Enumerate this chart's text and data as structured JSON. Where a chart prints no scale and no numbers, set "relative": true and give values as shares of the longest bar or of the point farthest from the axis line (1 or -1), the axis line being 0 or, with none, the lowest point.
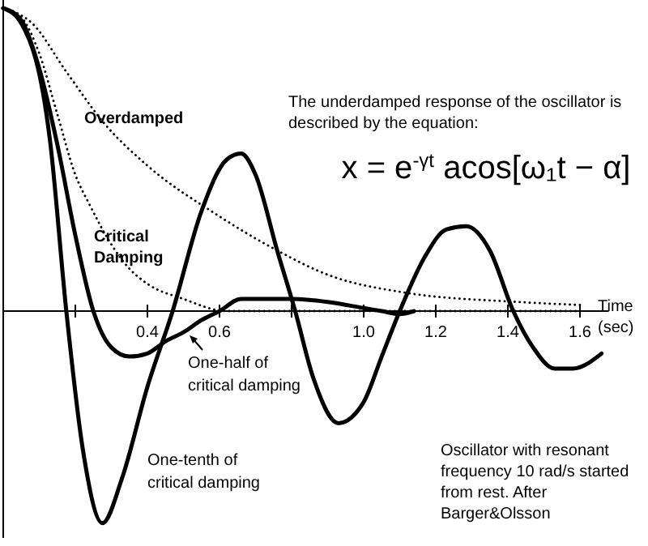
{
  "chart_data": {
    "type": "line",
    "relative": true,
    "xlabel": "Time (sec)",
    "xlim": [
      0,
      1.68
    ],
    "xticks": [
      {
        "value": 0.2,
        "label": null
      },
      0.4,
      0.6,
      {
        "value": 0.8,
        "label": null
      },
      {
        "value": 1,
        "label": "1.0"
      },
      1.2,
      1.4,
      1.6
    ],
    "marker": "none",
    "annotations": [
      "The underdamped response of the oscillator is described by the equation:",
      "x = e$^{-γt}$ acos[ω₁t − α]",
      "Oscillator with resonant frequency 10 rad/s started from rest. After Barger&Olsson"
    ],
    "series": [
      {
        "name": "Overdamped",
        "color": "#000000",
        "line_style": "dotted",
        "x": [
          0,
          0.08,
          0.175,
          0.28,
          0.4,
          0.59,
          0.76,
          0.9,
          1.12,
          1.43,
          1.6
        ],
        "values": [
          1,
          0.95,
          0.79,
          0.62,
          0.48,
          0.32,
          0.2,
          0.12,
          0.06,
          0.03,
          0.02
        ]
      },
      {
        "name": "Critical Damping",
        "color": "#000000",
        "line_style": "dotted",
        "x": [
          0,
          0.05,
          0.1,
          0.15,
          0.2,
          0.24,
          0.3,
          0.35,
          0.4,
          0.5,
          0.62,
          1.0,
          1.6
        ],
        "values": [
          1,
          0.97,
          0.85,
          0.65,
          0.45,
          0.35,
          0.22,
          0.14,
          0.09,
          0.04,
          0,
          0,
          0
        ]
      },
      {
        "name": "One-half of critical damping",
        "color": "#000000",
        "line_style": "solid",
        "x": [
          0,
          0.05,
          0.1,
          0.15,
          0.2,
          0.25,
          0.3,
          0.35,
          0.4,
          0.45,
          0.5,
          0.55,
          0.6,
          0.66,
          0.8,
          0.9,
          1.0,
          1.05,
          1.1,
          1.14
        ],
        "values": [
          1,
          0.96,
          0.8,
          0.55,
          0.25,
          0,
          -0.12,
          -0.15,
          -0.14,
          -0.1,
          -0.07,
          -0.03,
          0,
          0.04,
          0.04,
          0.03,
          0.01,
          0,
          -0.01,
          0
        ]
      },
      {
        "name": "One-tenth of critical damping",
        "color": "#000000",
        "line_style": "solid",
        "x": [
          0,
          0.05,
          0.13,
          0.175,
          0.22,
          0.275,
          0.33,
          0.4,
          0.47,
          0.55,
          0.62,
          0.66,
          0.7,
          0.76,
          0.81,
          0.86,
          0.93,
          1.0,
          1.05,
          1.1,
          1.17,
          1.23,
          1.285,
          1.35,
          1.415,
          1.47,
          1.53,
          1.58,
          1.66
        ],
        "values": [
          1,
          0.95,
          0.56,
          0,
          -0.45,
          -0.7,
          -0.55,
          -0.25,
          0,
          0.33,
          0.5,
          0.52,
          0.45,
          0.2,
          0,
          -0.22,
          -0.37,
          -0.3,
          -0.15,
          0,
          0.18,
          0.27,
          0.28,
          0.2,
          0,
          -0.12,
          -0.19,
          -0.19,
          -0.14
        ]
      }
    ]
  }
}
